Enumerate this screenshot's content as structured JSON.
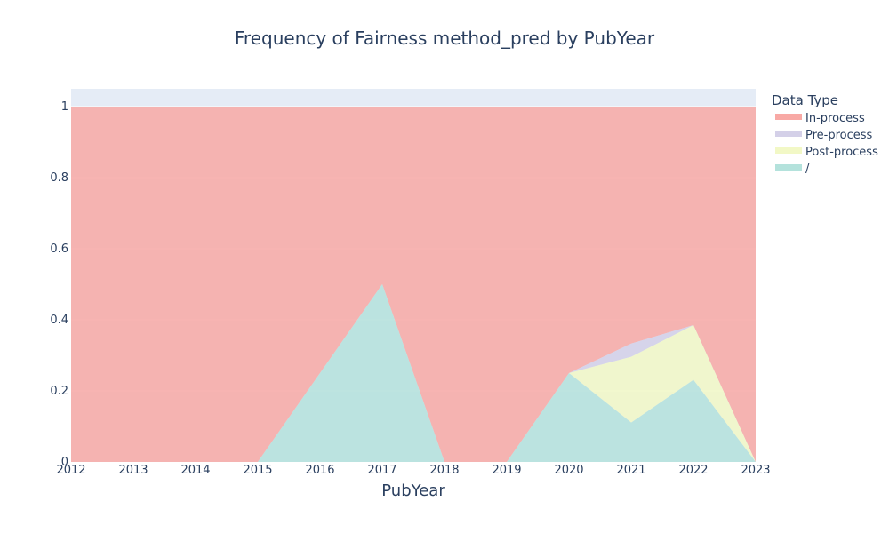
{
  "chart_data": {
    "type": "area",
    "title": "Frequency of Fairness method_pred by PubYear",
    "xlabel": "PubYear",
    "ylabel": "",
    "x": [
      2012,
      2013,
      2014,
      2015,
      2016,
      2017,
      2018,
      2019,
      2020,
      2021,
      2022,
      2023
    ],
    "xlim": [
      2012,
      2023
    ],
    "ylim": [
      0,
      1.05
    ],
    "yticks": [
      "0",
      "0.2",
      "0.4",
      "0.6",
      "0.8",
      "1"
    ],
    "stacked": true,
    "grid": true,
    "legend_position": "right",
    "legend_title": "Data Type",
    "series": [
      {
        "name": "In-process",
        "color": "#f8a9a5",
        "values": [
          1,
          1,
          1,
          1,
          0.75,
          0.5,
          1,
          1,
          0.75,
          0.667,
          0.615,
          1
        ]
      },
      {
        "name": "Pre-process",
        "color": "#d4d0e8",
        "values": [
          0,
          0,
          0,
          0,
          0,
          0,
          0,
          0,
          0,
          0.037,
          0,
          0
        ]
      },
      {
        "name": "Post-process",
        "color": "#f2f8c6",
        "values": [
          0,
          0,
          0,
          0,
          0,
          0,
          0,
          0,
          0,
          0.185,
          0.154,
          0
        ]
      },
      {
        "name": "/",
        "color": "#b4e2dc",
        "values": [
          0,
          0,
          0,
          0,
          0.25,
          0.5,
          0,
          0,
          0.25,
          0.111,
          0.231,
          0
        ]
      }
    ]
  }
}
